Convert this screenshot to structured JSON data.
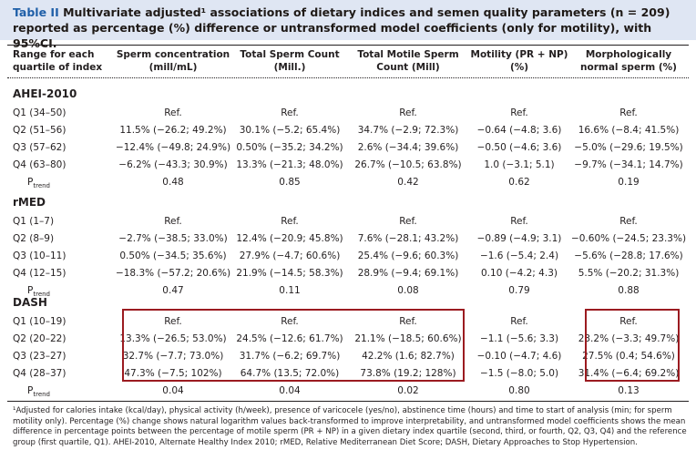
{
  "title": {
    "prefix": "Table II",
    "text": "Multivariate adjusted¹ associations of dietary indices and semen quality parameters (n = 209) reported as percentage (%) difference or untransformed model coefficients (only for motility), with 95%CI."
  },
  "headers": [
    "Range for each quartile of index",
    "Sperm concentration (mill/mL)",
    "Total Sperm Count (Mill.)",
    "Total Motile Sperm Count (Mill)",
    "Motility (PR + NP) (%)",
    "Morphologically normal sperm (%)"
  ],
  "ptrend_label": "P",
  "ptrend_sub": "trend",
  "groups": [
    {
      "name": "AHEI-2010",
      "rows": [
        {
          "label": "Q1 (34–50)",
          "cells": [
            "Ref.",
            "Ref.",
            "Ref.",
            "Ref.",
            "Ref."
          ]
        },
        {
          "label": "Q2 (51–56)",
          "cells": [
            "11.5% (−26.2; 49.2%)",
            "30.1% (−5.2; 65.4%)",
            "34.7% (−2.9; 72.3%)",
            "−0.64 (−4.8; 3.6)",
            "16.6% (−8.4; 41.5%)"
          ]
        },
        {
          "label": "Q3 (57–62)",
          "cells": [
            "−12.4% (−49.8; 24.9%)",
            "0.50% (−35.2; 34.2%)",
            "2.6% (−34.4; 39.6%)",
            "−0.50 (−4.6; 3.6)",
            "−5.0% (−29.6; 19.5%)"
          ]
        },
        {
          "label": "Q4 (63–80)",
          "cells": [
            "−6.2% (−43.3; 30.9%)",
            "13.3% (−21.3; 48.0%)",
            "26.7% (−10.5; 63.8%)",
            "1.0 (−3.1; 5.1)",
            "−9.7% (−34.1; 14.7%)"
          ]
        }
      ],
      "ptrend": [
        "0.48",
        "0.85",
        "0.42",
        "0.62",
        "0.19"
      ]
    },
    {
      "name": "rMED",
      "rows": [
        {
          "label": "Q1 (1–7)",
          "cells": [
            "Ref.",
            "Ref.",
            "Ref.",
            "Ref.",
            "Ref."
          ]
        },
        {
          "label": "Q2 (8–9)",
          "cells": [
            "−2.7% (−38.5; 33.0%)",
            "12.4% (−20.9; 45.8%)",
            "7.6% (−28.1; 43.2%)",
            "−0.89 (−4.9; 3.1)",
            "−0.60% (−24.5; 23.3%)"
          ]
        },
        {
          "label": "Q3 (10–11)",
          "cells": [
            "0.50% (−34.5; 35.6%)",
            "27.9% (−4.7; 60.6%)",
            "25.4% (−9.6; 60.3%)",
            "−1.6 (−5.4; 2.4)",
            "−5.6% (−28.8; 17.6%)"
          ]
        },
        {
          "label": "Q4 (12–15)",
          "cells": [
            "−18.3% (−57.2; 20.6%)",
            "21.9% (−14.5; 58.3%)",
            "28.9% (−9.4; 69.1%)",
            "0.10 (−4.2; 4.3)",
            "5.5% (−20.2; 31.3%)"
          ]
        }
      ],
      "ptrend": [
        "0.47",
        "0.11",
        "0.08",
        "0.79",
        "0.88"
      ]
    },
    {
      "name": "DASH",
      "rows": [
        {
          "label": "Q1 (10–19)",
          "cells": [
            "Ref.",
            "Ref.",
            "Ref.",
            "Ref.",
            "Ref."
          ]
        },
        {
          "label": "Q2 (20–22)",
          "cells": [
            "13.3% (−26.5; 53.0%)",
            "24.5% (−12.6; 61.7%)",
            "21.1% (−18.5; 60.6%)",
            "−1.1 (−5.6; 3.3)",
            "23.2% (−3.3; 49.7%)"
          ]
        },
        {
          "label": "Q3 (23–27)",
          "cells": [
            "32.7% (−7.7; 73.0%)",
            "31.7% (−6.2; 69.7%)",
            "42.2% (1.6; 82.7%)",
            "−0.10 (−4.7; 4.6)",
            "27.5% (0.4; 54.6%)"
          ]
        },
        {
          "label": "Q4 (28–37)",
          "cells": [
            "47.3% (−7.5; 102%)",
            "64.7% (13.5; 72.0%)",
            "73.8% (19.2; 128%)",
            "−1.5 (−8.0; 5.0)",
            "31.4% (−6.4; 69.2%)"
          ]
        }
      ],
      "ptrend": [
        "0.04",
        "0.04",
        "0.02",
        "0.80",
        "0.13"
      ]
    }
  ],
  "highlight_color": "#9b1b20",
  "footnote": "¹Adjusted for calories intake (kcal/day), physical activity (h/week), presence of varicocele (yes/no), abstinence time (hours) and time to start of analysis (min; for sperm motility only). Percentage (%) change shows natural logarithm values back-transformed to improve interpretability, and untransformed model coefficients shows the mean difference in percentage points between the percentage of motile sperm (PR + NP) in a given dietary index quartile (second, third, or fourth, Q2, Q3, Q4) and the reference group (first quartile, Q1). AHEI-2010, Alternate Healthy Index 2010; rMED, Relative Mediterranean Diet Score; DASH, Dietary Approaches to Stop Hypertension."
}
